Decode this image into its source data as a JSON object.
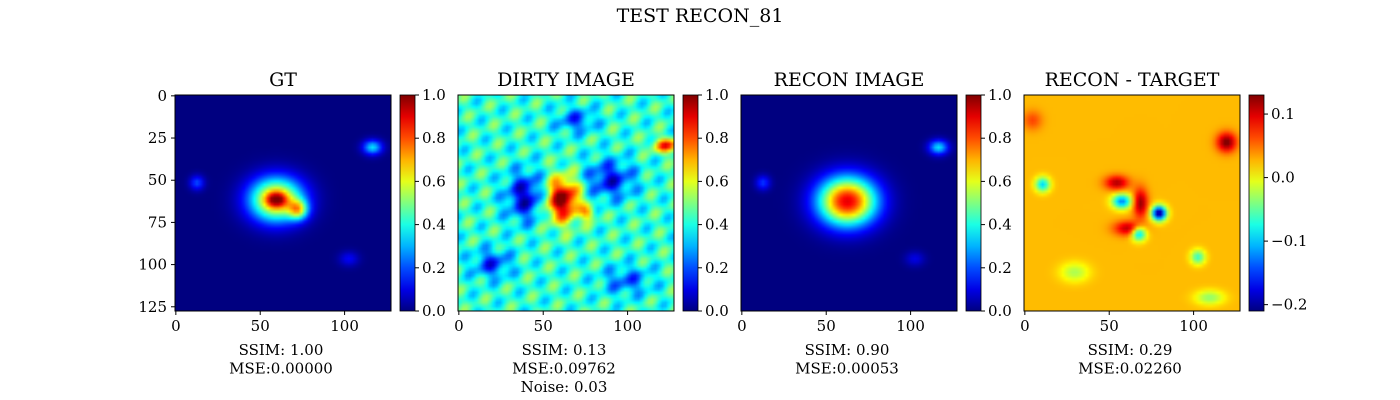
{
  "suptitle": "TEST RECON_81",
  "colors": {
    "colormap": "jet",
    "jet_stops": [
      "#00007f",
      "#0000ff",
      "#007fff",
      "#00ffff",
      "#7fff7f",
      "#ffff00",
      "#ff7f00",
      "#ff0000",
      "#7f0000"
    ]
  },
  "chart_data": [
    {
      "type": "heatmap",
      "title": "GT",
      "image_size": [
        128,
        128
      ],
      "xticks": [
        0,
        50,
        100
      ],
      "yticks": [
        0,
        25,
        50,
        75,
        100,
        125
      ],
      "show_yticks": true,
      "colorbar": {
        "range": [
          0.0,
          1.0
        ],
        "ticks": [
          "0.0",
          "0.2",
          "0.4",
          "0.6",
          "0.8",
          "1.0"
        ]
      },
      "annotation": [
        "SSIM: 1.00",
        "MSE:0.00000"
      ],
      "features": [
        {
          "cx": 60,
          "cy": 62,
          "sx": 11,
          "sy": 9,
          "amp": 0.75
        },
        {
          "cx": 73,
          "cy": 68,
          "sx": 4,
          "sy": 4,
          "amp": 0.45
        },
        {
          "cx": 60,
          "cy": 62,
          "sx": 4,
          "sy": 3,
          "amp": 0.35
        },
        {
          "cx": 117,
          "cy": 31,
          "sx": 4,
          "sy": 3,
          "amp": 0.35
        },
        {
          "cx": 13,
          "cy": 52,
          "sx": 3,
          "sy": 3,
          "amp": 0.2
        },
        {
          "cx": 103,
          "cy": 97,
          "sx": 4,
          "sy": 3,
          "amp": 0.12
        }
      ]
    },
    {
      "type": "heatmap",
      "title": "DIRTY IMAGE",
      "image_size": [
        128,
        128
      ],
      "xticks": [
        0,
        50,
        100
      ],
      "yticks": [],
      "show_yticks": false,
      "colorbar": {
        "range": [
          0.0,
          1.0
        ],
        "ticks": [
          "0.0",
          "0.2",
          "0.4",
          "0.6",
          "0.8",
          "1.0"
        ]
      },
      "annotation": [
        "SSIM: 0.13",
        "MSE:0.09762",
        "Noise: 0.03"
      ],
      "background": 0.42,
      "features": [
        {
          "cx": 62,
          "cy": 62,
          "sx": 7,
          "sy": 9,
          "amp": 0.6
        },
        {
          "cx": 77,
          "cy": 70,
          "sx": 3,
          "sy": 3,
          "amp": 0.25
        },
        {
          "cx": 124,
          "cy": 30,
          "sx": 6,
          "sy": 3,
          "amp": 0.4
        },
        {
          "cx": 40,
          "cy": 60,
          "sx": 8,
          "sy": 10,
          "amp": -0.35
        },
        {
          "cx": 90,
          "cy": 50,
          "sx": 10,
          "sy": 8,
          "amp": -0.3
        },
        {
          "cx": 20,
          "cy": 100,
          "sx": 8,
          "sy": 6,
          "amp": -0.25
        },
        {
          "cx": 100,
          "cy": 110,
          "sx": 10,
          "sy": 6,
          "amp": -0.2
        },
        {
          "cx": 70,
          "cy": 15,
          "sx": 8,
          "sy": 5,
          "amp": -0.22
        }
      ]
    },
    {
      "type": "heatmap",
      "title": "RECON IMAGE",
      "image_size": [
        128,
        128
      ],
      "xticks": [
        0,
        50,
        100
      ],
      "yticks": [],
      "show_yticks": false,
      "colorbar": {
        "range": [
          0.0,
          1.0
        ],
        "ticks": [
          "0.0",
          "0.2",
          "0.4",
          "0.6",
          "0.8",
          "1.0"
        ]
      },
      "annotation": [
        "SSIM: 0.90",
        "MSE:0.00053"
      ],
      "features": [
        {
          "cx": 63,
          "cy": 63,
          "sx": 12,
          "sy": 10,
          "amp": 0.9
        },
        {
          "cx": 117,
          "cy": 31,
          "sx": 4,
          "sy": 3,
          "amp": 0.35
        },
        {
          "cx": 13,
          "cy": 52,
          "sx": 3,
          "sy": 3,
          "amp": 0.18
        },
        {
          "cx": 103,
          "cy": 97,
          "sx": 4,
          "sy": 3,
          "amp": 0.1
        }
      ]
    },
    {
      "type": "heatmap",
      "title": "RECON - TARGET",
      "image_size": [
        128,
        128
      ],
      "xticks": [
        0,
        50,
        100
      ],
      "yticks": [],
      "show_yticks": false,
      "colorbar": {
        "range": [
          -0.21,
          0.13
        ],
        "ticks": [
          "0.1",
          "0.0",
          "−0.1",
          "−0.2"
        ],
        "tick_values": [
          0.1,
          0.0,
          -0.1,
          -0.2
        ]
      },
      "annotation": [
        "SSIM: 0.29",
        "MSE:0.02260"
      ],
      "background": 0.025,
      "features": [
        {
          "cx": 120,
          "cy": 28,
          "sx": 4,
          "sy": 4,
          "amp": 0.11
        },
        {
          "cx": 5,
          "cy": 15,
          "sx": 4,
          "sy": 4,
          "amp": 0.04
        },
        {
          "cx": 55,
          "cy": 52,
          "sx": 5,
          "sy": 3,
          "amp": 0.09
        },
        {
          "cx": 69,
          "cy": 64,
          "sx": 3,
          "sy": 6,
          "amp": 0.1
        },
        {
          "cx": 62,
          "cy": 79,
          "sx": 6,
          "sy": 3,
          "amp": 0.09
        },
        {
          "cx": 58,
          "cy": 63,
          "sx": 4,
          "sy": 3,
          "amp": -0.15
        },
        {
          "cx": 80,
          "cy": 70,
          "sx": 3,
          "sy": 3,
          "amp": -0.24
        },
        {
          "cx": 68,
          "cy": 82,
          "sx": 3,
          "sy": 3,
          "amp": -0.14
        },
        {
          "cx": 11,
          "cy": 53,
          "sx": 3,
          "sy": 3,
          "amp": -0.12
        },
        {
          "cx": 103,
          "cy": 96,
          "sx": 3,
          "sy": 3,
          "amp": -0.09
        },
        {
          "cx": 110,
          "cy": 120,
          "sx": 6,
          "sy": 3,
          "amp": -0.06
        },
        {
          "cx": 30,
          "cy": 105,
          "sx": 6,
          "sy": 4,
          "amp": -0.05
        }
      ]
    }
  ]
}
